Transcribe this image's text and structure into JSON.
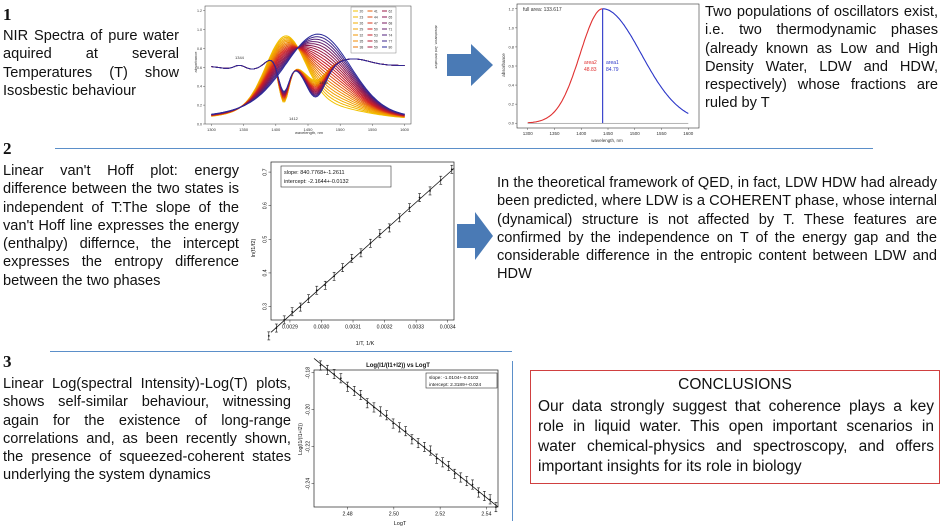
{
  "sections": {
    "s1": {
      "number": "1",
      "text": "NIR Spectra of pure water aquired at several Temperatures (T) show Isosbestic behaviour",
      "right_text": "Two populations of oscillators exist, i.e. two thermodynamic phases (already known as Low and High Density Water, LDW and HDW, respectively) whose fractions are ruled by T"
    },
    "s2": {
      "number": "2",
      "text": "Linear van't Hoff plot: energy difference between the two states is independent of T:The slope of the van't Hoff line expresses the energy (enthalpy) differnce, the intercept expresses the entropy difference between the two phases",
      "right_text": "In the theoretical framework of QED, in fact, LDW HDW had already been predicted, where LDW is a COHERENT phase, whose internal (dynamical) structure is not affected by T. These features are confirmed by the independence on T of the energy gap and the considerable difference in the entropic content between LDW and HDW"
    },
    "s3": {
      "number": "3",
      "text": "Linear Log(spectral Intensity)-Log(T) plots, shows self-similar behaviour, witnessing again for the existence of long-range correlations and, as been recently shown, the presence of squeezed-coherent states underlying the system dynamics"
    }
  },
  "conclusions": {
    "title": "CONCLUSIONS",
    "text": "Our data strongly suggest that coherence plays a key role in liquid water. This open important scenarios in water chemical-physics and spectroscopy, and offers important insights for its role in biology"
  },
  "chart_data": [
    {
      "type": "line",
      "xlabel": "wavelength, nm",
      "ylabel": "absorbance",
      "right_ylabel": "absorbance, 2nd derivative",
      "x_ticks": [
        "1300",
        "1350",
        "1400",
        "1450",
        "1500",
        "1550",
        "1600"
      ],
      "y_ticks": [
        "0.0",
        "0.2",
        "0.4",
        "0.6",
        "0.8",
        "1.0",
        "1.2"
      ],
      "annotations": [
        "1344",
        "1412",
        "1462"
      ],
      "legend": [
        "20",
        "23",
        "26",
        "29",
        "32",
        "35",
        "38",
        "41",
        "44",
        "47",
        "50",
        "53",
        "56",
        "59",
        "62",
        "65",
        "68",
        "71",
        "74",
        "77",
        "80"
      ],
      "temperatures": [
        20,
        23,
        26,
        29,
        32,
        35,
        38,
        41,
        44,
        47,
        50,
        53,
        56,
        59,
        62,
        65,
        68,
        71,
        74,
        77,
        80
      ]
    },
    {
      "type": "area",
      "title": "full area: 133.617",
      "xlabel": "wavelength, nm",
      "ylabel": "absorbance",
      "x_ticks": [
        "1300",
        "1350",
        "1400",
        "1450",
        "1500",
        "1550",
        "1600"
      ],
      "y_ticks": [
        "0.0",
        "0.2",
        "0.4",
        "0.6",
        "0.8",
        "1.0",
        "1.2"
      ],
      "series": [
        {
          "name": "area2",
          "value": "48.83",
          "color": "#e03030"
        },
        {
          "name": "area1",
          "value": "84.79",
          "color": "#2a35c8"
        }
      ],
      "split_x": 1440
    },
    {
      "type": "scatter",
      "xlabel": "1/T, 1/K",
      "ylabel": "ln(f1/f2)",
      "legend": [
        "slope: 840.7768+-1.2611",
        "intercept: -2.1644+-0.0132"
      ],
      "x_ticks": [
        "0.0029",
        "0.0030",
        "0.0031",
        "0.0032",
        "0.0033",
        "0.0034"
      ],
      "y_ticks": [
        "0.3",
        "0.4",
        "0.5",
        "0.6",
        "0.7"
      ],
      "xlim": [
        0.00284,
        0.00342
      ],
      "ylim": [
        0.26,
        0.73
      ],
      "fit": {
        "slope": 840.7768,
        "intercept": -2.1644
      },
      "x": [
        0.002833,
        0.002857,
        0.002882,
        0.002907,
        0.002933,
        0.002959,
        0.002985,
        0.003012,
        0.00304,
        0.003067,
        0.003096,
        0.003125,
        0.003155,
        0.003185,
        0.003215,
        0.003247,
        0.003279,
        0.003311,
        0.003344,
        0.003378,
        0.003413
      ],
      "error": 0.012
    },
    {
      "type": "scatter",
      "title": "Log(I1/(I1+I2)) vs LogT",
      "xlabel": "LogT",
      "ylabel": "Log(I1/(I1+I2))",
      "legend": [
        "slope: -1.0104+-0.0102",
        "intercept: 2.3189+-0.024"
      ],
      "x_ticks": [
        "2.48",
        "2.50",
        "2.52",
        "2.54"
      ],
      "y_ticks": [
        "-0.18",
        "-0.20",
        "-0.22",
        "-0.24"
      ],
      "xlim": [
        2.4655,
        2.545
      ],
      "ylim": [
        -0.2526,
        -0.1785
      ],
      "fit": {
        "slope": -1.0104,
        "intercept": 2.3189
      },
      "x": [
        2.4683,
        2.4713,
        2.4742,
        2.4771,
        2.48,
        2.4829,
        2.4857,
        2.4885,
        2.4914,
        2.4942,
        2.4969,
        2.4997,
        2.5024,
        2.5051,
        2.5078,
        2.5105,
        2.5132,
        2.5158,
        2.5185,
        2.5211,
        2.5237,
        2.5263,
        2.5289,
        2.5315,
        2.534,
        2.5366,
        2.5391,
        2.5416,
        2.5441
      ],
      "error": 0.0025
    }
  ],
  "arrows": {
    "color": "#4a7ab5"
  },
  "colors": {
    "rule": "#5b8fc9",
    "conclusion_border": "#d04040"
  }
}
